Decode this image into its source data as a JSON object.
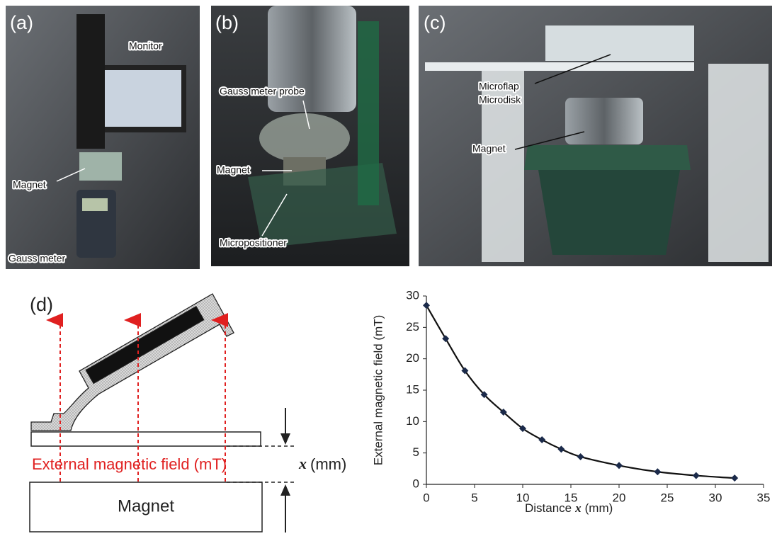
{
  "panels": [
    {
      "label": "(a)",
      "annotations": [
        "Monitor",
        "Magnet",
        "Gauss meter"
      ]
    },
    {
      "label": "(b)",
      "annotations": [
        "Gauss meter probe",
        "Magnet",
        "Micropositioner"
      ]
    },
    {
      "label": "(c)",
      "annotations": [
        "Microflap",
        "Microdisk",
        "Magnet"
      ]
    }
  ],
  "diagram": {
    "label": "(d)",
    "magnet_label": "Magnet",
    "field_label": "External magnetic field (mT)",
    "gap_symbol": "x",
    "gap_unit": "(mm)"
  },
  "chart_data": {
    "type": "line",
    "x_label": {
      "text": "Distance",
      "symbol": "x",
      "unit": "(mm)"
    },
    "y_label": "External magnetic field (mT)",
    "x": [
      0,
      2,
      4,
      6,
      8,
      10,
      12,
      14,
      16,
      20,
      24,
      28,
      32
    ],
    "series": [
      {
        "color": "#1b2a4a",
        "values": [
          28.5,
          23.2,
          18.1,
          14.3,
          11.5,
          8.9,
          7.1,
          5.6,
          4.4,
          3.0,
          2.0,
          1.4,
          1.0
        ]
      }
    ],
    "line_color": "#111111",
    "xlim": [
      0,
      35
    ],
    "xticks": [
      0,
      5,
      10,
      15,
      20,
      25,
      30,
      35
    ],
    "ylim": [
      0,
      30
    ],
    "yticks": [
      0,
      5,
      10,
      15,
      20,
      25,
      30
    ],
    "grid": false
  }
}
